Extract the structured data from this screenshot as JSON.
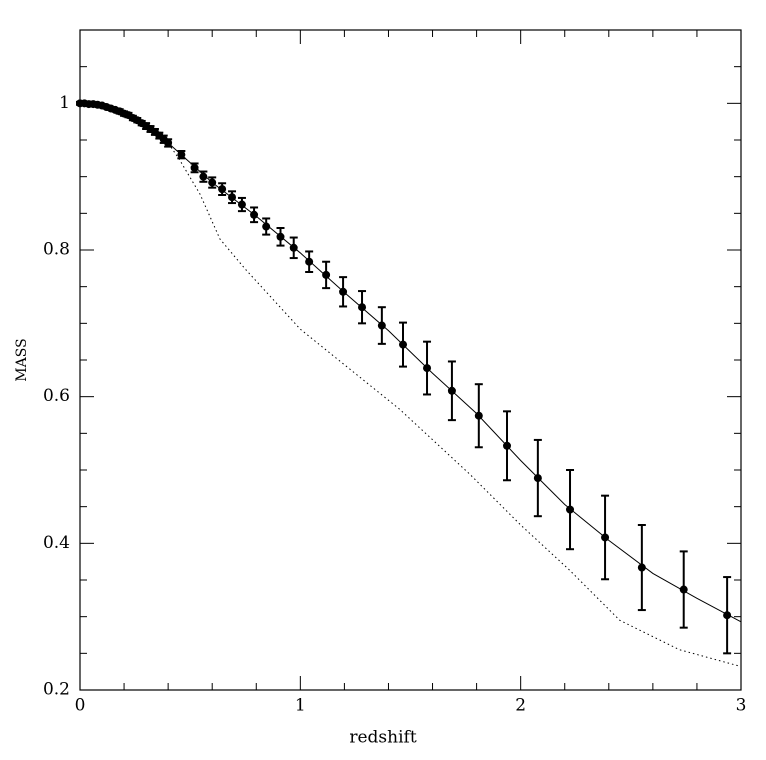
{
  "chart_data": {
    "type": "scatter",
    "xlabel": "redshift",
    "ylabel": "MASS",
    "xlim": [
      0,
      3
    ],
    "ylim": [
      0.2,
      1.1
    ],
    "xticks": [
      0,
      1,
      2,
      3
    ],
    "yticks": [
      0.2,
      0.4,
      0.6,
      0.8,
      1
    ],
    "xminorticks": [
      0.2,
      0.4,
      0.6,
      0.8,
      1.2,
      1.4,
      1.6,
      1.8,
      2.2,
      2.4,
      2.6,
      2.8
    ],
    "yminorticks": [
      0.25,
      0.3,
      0.35,
      0.45,
      0.5,
      0.55,
      0.65,
      0.7,
      0.75,
      0.85,
      0.9,
      0.95,
      1.05
    ],
    "series": [
      {
        "style": "points",
        "color": "#000000",
        "x": [
          0,
          0.02,
          0.04,
          0.06,
          0.08,
          0.1,
          0.12,
          0.14,
          0.16,
          0.18,
          0.2,
          0.22,
          0.24,
          0.26,
          0.28,
          0.3,
          0.32,
          0.34,
          0.36,
          0.38,
          0.4,
          0.46,
          0.52,
          0.56,
          0.6,
          0.645,
          0.69,
          0.735,
          0.79,
          0.845,
          0.91,
          0.97,
          1.04,
          1.117,
          1.194,
          1.28,
          1.37,
          1.466,
          1.575,
          1.688,
          1.81,
          1.938,
          2.078,
          2.224,
          2.383,
          2.55,
          2.74,
          2.937
        ],
        "values": [
          1.0,
          1.0,
          0.999,
          0.999,
          0.998,
          0.997,
          0.995,
          0.993,
          0.991,
          0.989,
          0.986,
          0.984,
          0.98,
          0.977,
          0.973,
          0.969,
          0.965,
          0.961,
          0.956,
          0.951,
          0.946,
          0.93,
          0.912,
          0.9,
          0.892,
          0.883,
          0.872,
          0.862,
          0.848,
          0.832,
          0.818,
          0.803,
          0.784,
          0.766,
          0.743,
          0.722,
          0.697,
          0.671,
          0.639,
          0.608,
          0.574,
          0.533,
          0.489,
          0.446,
          0.408,
          0.367,
          0.337,
          0.302
        ],
        "errors": [
          0.002,
          0.002,
          0.002,
          0.002,
          0.002,
          0.002,
          0.002,
          0.002,
          0.002,
          0.003,
          0.003,
          0.003,
          0.003,
          0.003,
          0.003,
          0.004,
          0.004,
          0.004,
          0.004,
          0.005,
          0.005,
          0.005,
          0.006,
          0.007,
          0.007,
          0.008,
          0.008,
          0.009,
          0.01,
          0.011,
          0.012,
          0.014,
          0.014,
          0.018,
          0.02,
          0.022,
          0.025,
          0.03,
          0.036,
          0.04,
          0.043,
          0.047,
          0.052,
          0.054,
          0.057,
          0.058,
          0.052,
          0.052
        ]
      },
      {
        "style": "solid",
        "color": "#000000",
        "x": [
          0,
          0.2,
          0.4,
          0.6,
          0.8,
          1,
          1.2,
          1.4,
          1.6,
          1.8,
          2,
          2.2,
          2.4,
          2.6,
          2.8,
          3
        ],
        "values": [
          1.0,
          0.986,
          0.946,
          0.892,
          0.846,
          0.796,
          0.742,
          0.69,
          0.632,
          0.577,
          0.513,
          0.453,
          0.404,
          0.359,
          0.325,
          0.293
        ]
      },
      {
        "style": "dotted",
        "color": "#000000",
        "x": [
          0,
          0.2,
          0.4,
          0.45,
          0.545,
          0.635,
          0.75,
          1.0,
          1.45,
          1.77,
          2.0,
          2.22,
          2.45,
          2.72,
          3
        ],
        "values": [
          1.0,
          0.986,
          0.946,
          0.924,
          0.876,
          0.815,
          0.774,
          0.692,
          0.583,
          0.494,
          0.425,
          0.364,
          0.295,
          0.255,
          0.232
        ]
      }
    ]
  }
}
